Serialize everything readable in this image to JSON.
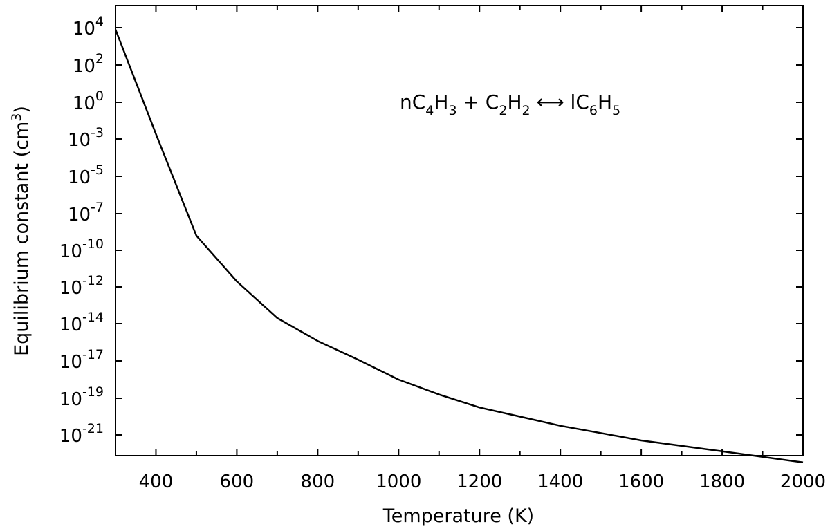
{
  "chart_data": {
    "type": "line",
    "xlabel": "Temperature (K)",
    "ylabel": "Equilibrium constant (cm",
    "ylabel_superscript": "3",
    "ylabel_close": ")",
    "xlim": [
      300,
      2000
    ],
    "y_scale": "log (uneven decade spacing)",
    "x_ticks": [
      400,
      600,
      800,
      1000,
      1200,
      1400,
      1600,
      1800,
      2000
    ],
    "x_minor_ticks": [
      500,
      700,
      900,
      1100,
      1300,
      1500,
      1700,
      1900
    ],
    "y_ticks": [
      {
        "base": "10",
        "exp": "4"
      },
      {
        "base": "10",
        "exp": "2"
      },
      {
        "base": "10",
        "exp": "0"
      },
      {
        "base": "10",
        "exp": "-3"
      },
      {
        "base": "10",
        "exp": "-5"
      },
      {
        "base": "10",
        "exp": "-7"
      },
      {
        "base": "10",
        "exp": "-10"
      },
      {
        "base": "10",
        "exp": "-12"
      },
      {
        "base": "10",
        "exp": "-14"
      },
      {
        "base": "10",
        "exp": "-17"
      },
      {
        "base": "10",
        "exp": "-19"
      },
      {
        "base": "10",
        "exp": "-21"
      }
    ],
    "annotation": {
      "parts": [
        {
          "t": "nC"
        },
        {
          "t": "4",
          "sub": true
        },
        {
          "t": "H"
        },
        {
          "t": "3",
          "sub": true
        },
        {
          "t": " + C"
        },
        {
          "t": "2",
          "sub": true
        },
        {
          "t": "H"
        },
        {
          "t": "2",
          "sub": true
        },
        {
          "t": " ⟷ lC"
        },
        {
          "t": "6",
          "sub": true
        },
        {
          "t": "H"
        },
        {
          "t": "5",
          "sub": true
        }
      ]
    },
    "series": [
      {
        "x": [
          300,
          400,
          500,
          600,
          700,
          800,
          900,
          1000,
          1100,
          1200,
          1300,
          1400,
          1500,
          1600,
          1700,
          1800,
          1900,
          2000
        ],
        "y_exp": [
          3.9,
          -2.6,
          -8.8,
          -11.7,
          -13.7,
          -15.4,
          -16.9,
          -18.0,
          -18.8,
          -19.5,
          -20.0,
          -20.5,
          -20.9,
          -21.3,
          -21.6,
          -21.9,
          -22.2,
          -22.5
        ]
      }
    ],
    "grid": false,
    "legend": "none",
    "line_color": "#000000"
  }
}
